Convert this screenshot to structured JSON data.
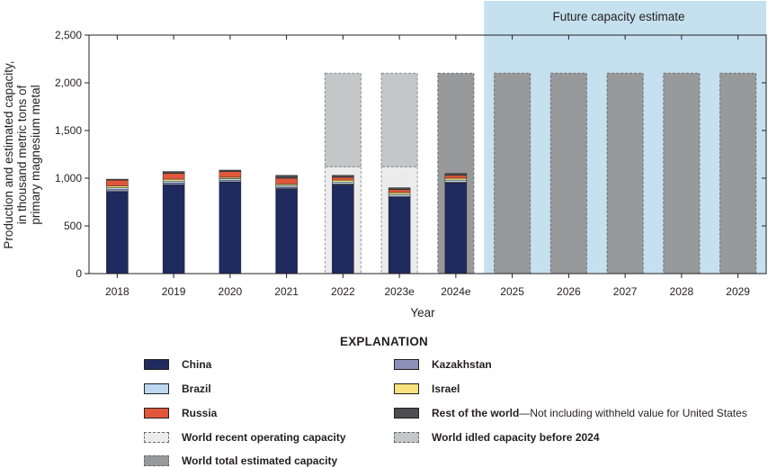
{
  "chart_data": {
    "type": "bar",
    "ylabel_lines": [
      "Production and estimated capacity,",
      "in thousand metric tons of",
      "primary magnesium metal"
    ],
    "xlabel": "Year",
    "ylim": [
      0,
      2500
    ],
    "yticks": [
      0,
      500,
      1000,
      1500,
      2000,
      2500
    ],
    "ytick_labels": [
      "0",
      "500",
      "1,000",
      "1,500",
      "2,000",
      "2,500"
    ],
    "categories": [
      "2018",
      "2019",
      "2020",
      "2021",
      "2022",
      "2023e",
      "2024e",
      "2025",
      "2026",
      "2027",
      "2028",
      "2029"
    ],
    "series": [
      {
        "name": "China",
        "color": "#1f2a5e",
        "values": [
          860,
          930,
          960,
          890,
          930,
          800,
          950,
          null,
          null,
          null,
          null,
          null
        ]
      },
      {
        "name": "Kazakhstan",
        "color": "#8a90b8",
        "values": [
          20,
          20,
          15,
          15,
          10,
          10,
          10,
          null,
          null,
          null,
          null,
          null
        ]
      },
      {
        "name": "Brazil",
        "color": "#bcd7ef",
        "values": [
          20,
          20,
          20,
          20,
          20,
          20,
          20,
          null,
          null,
          null,
          null,
          null
        ]
      },
      {
        "name": "Israel",
        "color": "#f9e27c",
        "values": [
          20,
          20,
          15,
          15,
          20,
          20,
          20,
          null,
          null,
          null,
          null,
          null
        ]
      },
      {
        "name": "Russia",
        "color": "#e2573b",
        "values": [
          60,
          60,
          60,
          60,
          30,
          30,
          30,
          null,
          null,
          null,
          null,
          null
        ]
      },
      {
        "name": "Rest of the world",
        "color": "#4d4d4f",
        "values": [
          10,
          20,
          15,
          30,
          20,
          20,
          20,
          null,
          null,
          null,
          null,
          null
        ]
      }
    ],
    "capacity": {
      "recent_operating": [
        null,
        null,
        null,
        null,
        1120,
        1120,
        null,
        null,
        null,
        null,
        null,
        null
      ],
      "idled": [
        null,
        null,
        null,
        null,
        980,
        980,
        null,
        null,
        null,
        null,
        null,
        null
      ],
      "total": [
        null,
        null,
        null,
        null,
        null,
        null,
        2100,
        2100,
        2100,
        2100,
        2100,
        2100
      ]
    },
    "future_region": {
      "from": "2025",
      "to": "2029",
      "label": "Future capacity estimate",
      "color": "#c5e0ef"
    },
    "capacity_colors": {
      "recent_operating": "#ececec",
      "idled": "#c5c6c8",
      "total": "#98999b"
    }
  },
  "legend": {
    "title": "EXPLANATION",
    "items": [
      {
        "label": "China",
        "note": "",
        "color": "#1f2a5e",
        "dashed": false
      },
      {
        "label": "Kazakhstan",
        "note": "",
        "color": "#8a90b8",
        "dashed": false
      },
      {
        "label": "Brazil",
        "note": "",
        "color": "#bcd7ef",
        "dashed": false
      },
      {
        "label": "Israel",
        "note": "",
        "color": "#f9e27c",
        "dashed": false
      },
      {
        "label": "Russia",
        "note": "",
        "color": "#e2573b",
        "dashed": false
      },
      {
        "label": "Rest of the world",
        "note": "—Not including withheld value for United States",
        "color": "#4d4d4f",
        "dashed": false
      },
      {
        "label": "World recent operating capacity",
        "note": "",
        "color": "#ececec",
        "dashed": true
      },
      {
        "label": "World idled capacity before 2024",
        "note": "",
        "color": "#c5c6c8",
        "dashed": true
      },
      {
        "label": "World total estimated capacity",
        "note": "",
        "color": "#98999b",
        "dashed": true
      }
    ]
  }
}
